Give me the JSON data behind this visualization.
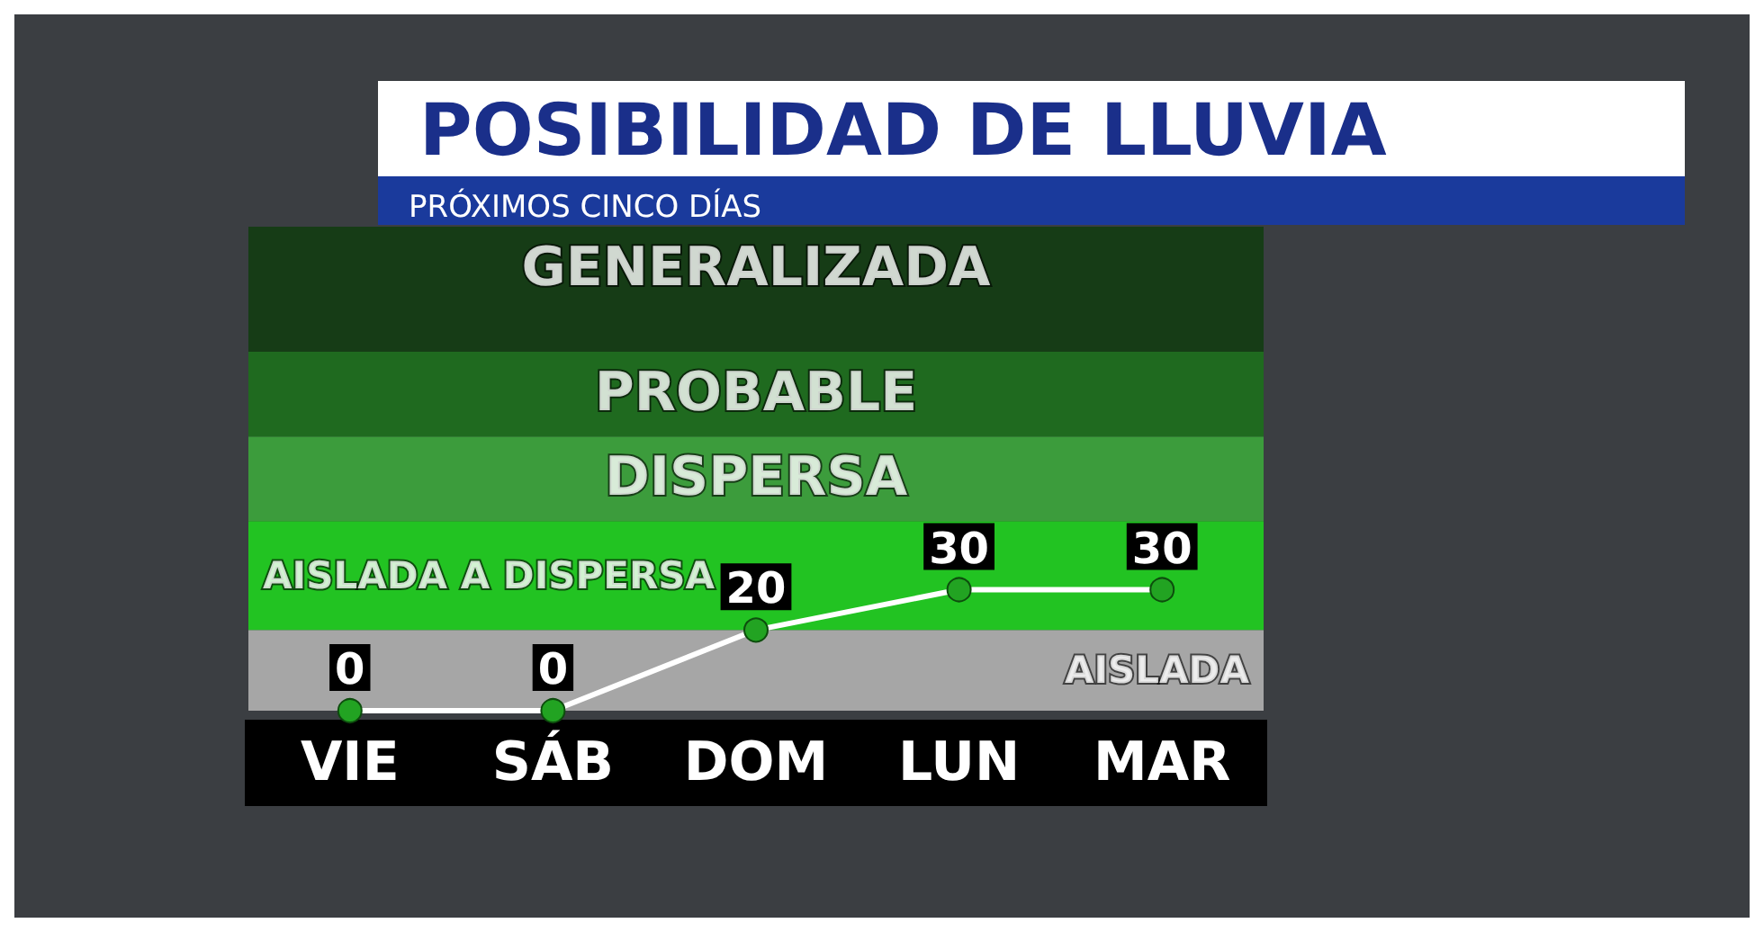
{
  "chart_data": {
    "type": "line",
    "title": "POSIBILIDAD DE LLUVIA",
    "subtitle": "PRÓXIMOS CINCO DÍAS",
    "categories": [
      "VIE",
      "SÁB",
      "DOM",
      "LUN",
      "MAR"
    ],
    "values": [
      0,
      0,
      20,
      30,
      30
    ],
    "color": "#ffffff",
    "marker": "circle",
    "line_style": "solid",
    "data_labels": true,
    "tick_labels": "x",
    "bands": [
      {
        "axis": "y",
        "from": 0,
        "to": 20,
        "label": "AISLADA",
        "color": "#a6a6a6"
      },
      {
        "axis": "y",
        "from": 20,
        "to": 47,
        "label": "AISLADA A DISPERSA",
        "color": "#22c322"
      },
      {
        "axis": "y",
        "from": 47,
        "to": 68,
        "label": "DISPERSA",
        "color": "#3c9c3c"
      },
      {
        "axis": "y",
        "from": 68,
        "to": 89,
        "label": "PROBABLE",
        "color": "#1f6a1f"
      },
      {
        "axis": "y",
        "from": 89,
        "to": 120,
        "label": "GENERALIZADA",
        "color": "#163c16"
      }
    ]
  }
}
